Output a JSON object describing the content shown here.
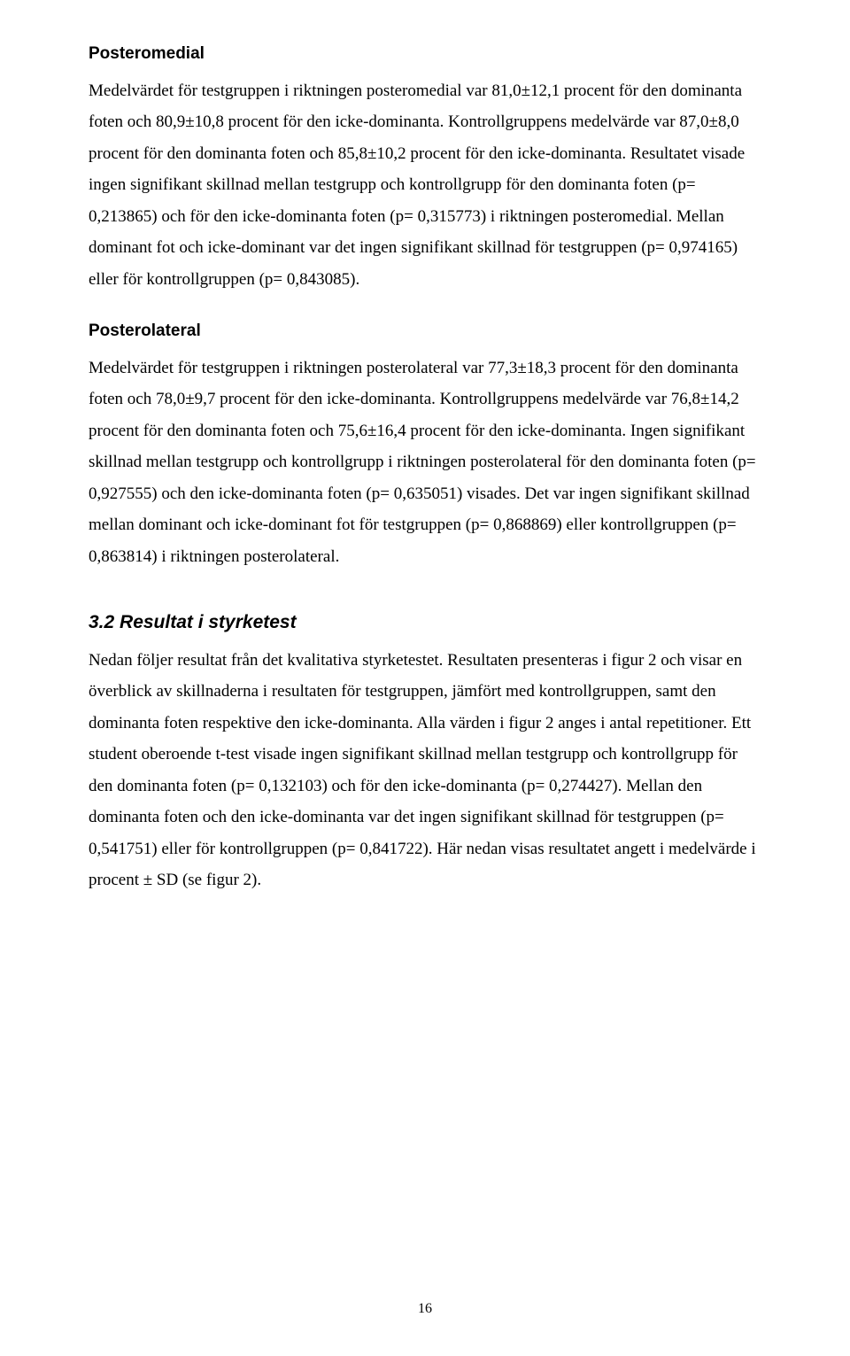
{
  "sections": {
    "posteromedial": {
      "heading": "Posteromedial",
      "body": "Medelvärdet för testgruppen i riktningen posteromedial var 81,0±12,1 procent för den dominanta foten och 80,9±10,8 procent för den icke-dominanta. Kontrollgruppens medelvärde var 87,0±8,0 procent för den dominanta foten och 85,8±10,2 procent för den icke-dominanta. Resultatet visade ingen signifikant skillnad mellan testgrupp och kontrollgrupp för den dominanta foten (p= 0,213865) och för den icke-dominanta foten (p= 0,315773) i riktningen posteromedial. Mellan dominant fot och icke-dominant var det ingen signifikant skillnad för testgruppen (p= 0,974165) eller för kontrollgruppen (p= 0,843085)."
    },
    "posterolateral": {
      "heading": "Posterolateral",
      "body": "Medelvärdet för testgruppen i riktningen posterolateral var 77,3±18,3 procent för den dominanta foten och 78,0±9,7 procent för den icke-dominanta. Kontrollgruppens medelvärde var 76,8±14,2 procent för den dominanta foten och 75,6±16,4 procent för den icke-dominanta. Ingen signifikant skillnad mellan testgrupp och kontrollgrupp i riktningen posterolateral för den dominanta foten (p= 0,927555) och den icke-dominanta foten (p= 0,635051) visades. Det var ingen signifikant skillnad mellan dominant och icke-dominant fot för testgruppen (p= 0,868869) eller kontrollgruppen (p= 0,863814) i riktningen posterolateral."
    },
    "styrketest": {
      "heading": "3.2 Resultat i styrketest",
      "body": "Nedan följer resultat från det kvalitativa styrketestet. Resultaten presenteras i figur 2 och visar en överblick av skillnaderna i resultaten för testgruppen, jämfört med kontrollgruppen, samt den dominanta foten respektive den icke-dominanta. Alla värden i figur 2 anges i antal repetitioner. Ett student oberoende t-test visade ingen signifikant skillnad mellan testgrupp och kontrollgrupp för den dominanta foten (p= 0,132103) och för den icke-dominanta (p= 0,274427). Mellan den dominanta foten och den icke-dominanta var det ingen signifikant skillnad för testgruppen (p= 0,541751) eller för kontrollgruppen (p= 0,841722). Här nedan visas resultatet angett i medelvärde i procent ± SD (se figur 2)."
    }
  },
  "page_number": "16"
}
